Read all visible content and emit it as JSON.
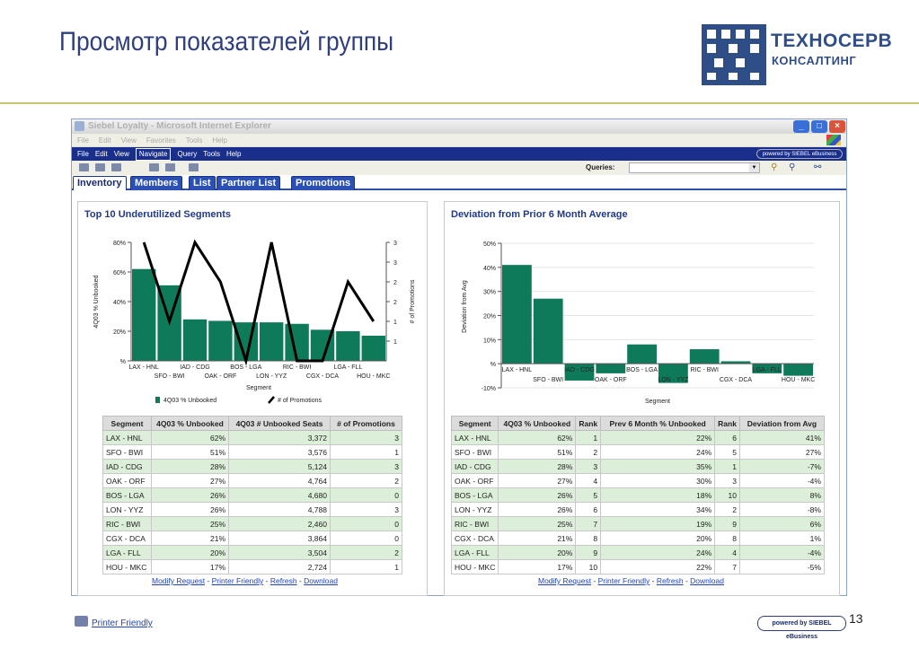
{
  "slide": {
    "title": "Просмотр показателей группы",
    "logo_name": "ТЕХНОСЕРВ",
    "logo_sub": "КОНСАЛТИНГ",
    "page_number": "13",
    "printer_friendly": "Printer Friendly",
    "powered_by": "powered by SIEBEL eBusiness"
  },
  "browser": {
    "title": "Siebel Loyalty - Microsoft Internet Explorer",
    "ie_menu": [
      "File",
      "Edit",
      "View",
      "Favorites",
      "Tools",
      "Help"
    ],
    "app_menu": [
      "File",
      "Edit",
      "View",
      "Navigate",
      "Query",
      "Tools",
      "Help"
    ],
    "app_menu_selected": "Navigate",
    "powered_small": "powered by SIEBEL eBusiness",
    "queries_label": "Queries:",
    "tabs": [
      "Inventory",
      "Members",
      "List",
      "Partner List",
      "Promotions"
    ],
    "active_tab": "Inventory"
  },
  "left_panel": {
    "title": "Top 10 Underutilized Segments",
    "columns": [
      "Segment",
      "4Q03 % Unbooked",
      "4Q03 # Unbooked Seats",
      "# of Promotions"
    ],
    "rows": [
      [
        "LAX - HNL",
        "62%",
        "3,372",
        "3"
      ],
      [
        "SFO - BWI",
        "51%",
        "3,576",
        "1"
      ],
      [
        "IAD - CDG",
        "28%",
        "5,124",
        "3"
      ],
      [
        "OAK - ORF",
        "27%",
        "4,764",
        "2"
      ],
      [
        "BOS - LGA",
        "26%",
        "4,680",
        "0"
      ],
      [
        "LON - YYZ",
        "26%",
        "4,788",
        "3"
      ],
      [
        "RIC - BWI",
        "25%",
        "2,460",
        "0"
      ],
      [
        "CGX - DCA",
        "21%",
        "3,864",
        "0"
      ],
      [
        "LGA - FLL",
        "20%",
        "3,504",
        "2"
      ],
      [
        "HOU - MKC",
        "17%",
        "2,724",
        "1"
      ]
    ],
    "links": [
      "Modify Request",
      "Printer Friendly",
      "Refresh",
      "Download"
    ]
  },
  "right_panel": {
    "title": "Deviation from Prior 6 Month Average",
    "columns": [
      "Segment",
      "4Q03 % Unbooked",
      "Rank",
      "Prev 6 Month % Unbooked",
      "Rank",
      "Deviation from Avg"
    ],
    "rows": [
      [
        "LAX - HNL",
        "62%",
        "1",
        "22%",
        "6",
        "41%"
      ],
      [
        "SFO - BWI",
        "51%",
        "2",
        "24%",
        "5",
        "27%"
      ],
      [
        "IAD - CDG",
        "28%",
        "3",
        "35%",
        "1",
        "-7%"
      ],
      [
        "OAK - ORF",
        "27%",
        "4",
        "30%",
        "3",
        "-4%"
      ],
      [
        "BOS - LGA",
        "26%",
        "5",
        "18%",
        "10",
        "8%"
      ],
      [
        "LON - YYZ",
        "26%",
        "6",
        "34%",
        "2",
        "-8%"
      ],
      [
        "RIC - BWI",
        "25%",
        "7",
        "19%",
        "9",
        "6%"
      ],
      [
        "CGX - DCA",
        "21%",
        "8",
        "20%",
        "8",
        "1%"
      ],
      [
        "LGA - FLL",
        "20%",
        "9",
        "24%",
        "4",
        "-4%"
      ],
      [
        "HOU - MKC",
        "17%",
        "10",
        "22%",
        "7",
        "-5%"
      ]
    ],
    "links": [
      "Modify Request",
      "Printer Friendly",
      "Refresh",
      "Download"
    ]
  },
  "chart_data": [
    {
      "type": "bar",
      "categories": [
        "LAX - HNL",
        "SFO - BWI",
        "IAD - CDG",
        "OAK - ORF",
        "BOS - LGA",
        "LON - YYZ",
        "RIC - BWI",
        "CGX - DCA",
        "LGA - FLL",
        "HOU - MKC"
      ],
      "series": [
        {
          "name": "4Q03 % Unbooked",
          "type": "bar",
          "axis": "left",
          "values": [
            62,
            51,
            28,
            27,
            26,
            26,
            25,
            21,
            20,
            17
          ]
        },
        {
          "name": "# of Promotions",
          "type": "line",
          "axis": "right",
          "values": [
            3,
            1,
            3,
            2,
            0,
            3,
            0,
            0,
            2,
            1
          ]
        }
      ],
      "xlabel": "Segment",
      "ylabel": "4Q03 % Unbooked",
      "y2label": "# of Promotions",
      "ylim": [
        0,
        80
      ],
      "y2lim": [
        0,
        3
      ],
      "yticks": [
        "%",
        "20%",
        "40%",
        "60%",
        "80%"
      ],
      "y2ticks": [
        "1",
        "1",
        "2",
        "2",
        "3",
        "3"
      ],
      "legend_position": "bottom",
      "bar_color": "#0f7a5a",
      "line_color": "#000000"
    },
    {
      "type": "bar",
      "categories": [
        "LAX - HNL",
        "SFO - BWI",
        "IAD - CDG",
        "OAK - ORF",
        "BOS - LGA",
        "LON - YYZ",
        "RIC - BWI",
        "CGX - DCA",
        "LGA - FLL",
        "HOU - MKC"
      ],
      "values": [
        41,
        27,
        -7,
        -4,
        8,
        -8,
        6,
        1,
        -4,
        -5
      ],
      "xlabel": "Segment",
      "ylabel": "Deviation from Avg",
      "ylim": [
        -10,
        50
      ],
      "yticks": [
        "-10%",
        "%",
        "10%",
        "20%",
        "30%",
        "40%",
        "50%"
      ],
      "bar_color": "#0f7a5a"
    }
  ]
}
